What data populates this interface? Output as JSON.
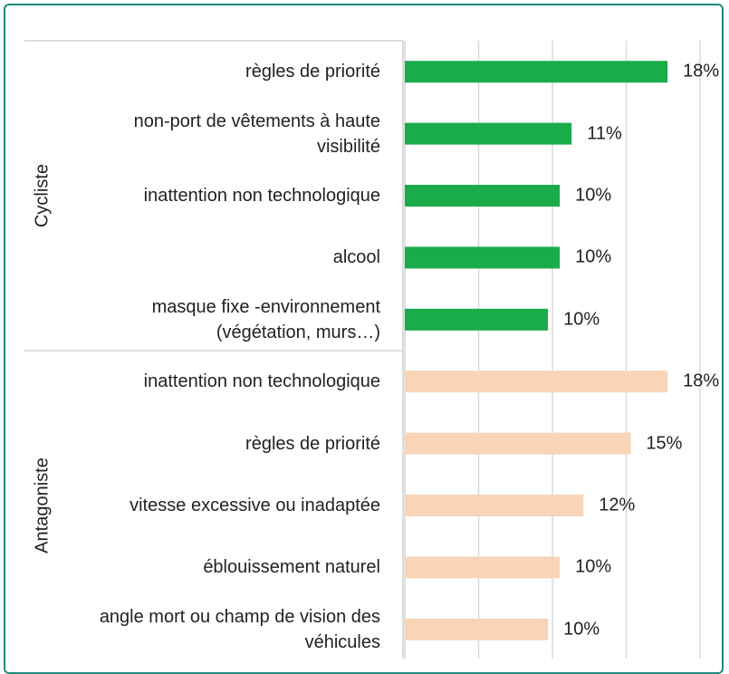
{
  "chart_data": {
    "type": "bar",
    "orientation": "horizontal",
    "xlim": [
      0,
      20
    ],
    "xticks": [
      0,
      5,
      10,
      15,
      20
    ],
    "grid": true,
    "groups": [
      {
        "name": "Cycliste",
        "color": "#1aab4b",
        "categories": [
          "règles de priorité",
          "non-port de vêtements à haute visibilité",
          "inattention non technologique",
          "alcool",
          "masque fixe -environnement (végétation, murs…)"
        ],
        "values": [
          17.8,
          11.3,
          10.5,
          10.5,
          9.7
        ],
        "value_labels": [
          "18%",
          "11%",
          "10%",
          "10%",
          "10%"
        ]
      },
      {
        "name": "Antagoniste",
        "color": "#f9d4b6",
        "categories": [
          "inattention non technologique",
          "règles de priorité",
          "vitesse excessive ou inadaptée",
          "éblouissement  naturel",
          "angle mort ou champ de vision des véhicules"
        ],
        "values": [
          17.8,
          15.3,
          12.1,
          10.5,
          9.7
        ],
        "value_labels": [
          "18%",
          "15%",
          "12%",
          "10%",
          "10%"
        ]
      }
    ]
  }
}
